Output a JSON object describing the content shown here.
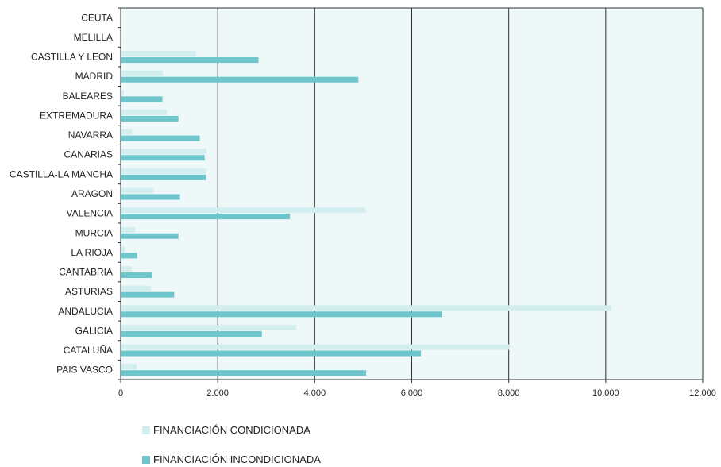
{
  "chart_data": {
    "type": "bar",
    "orientation": "horizontal",
    "categories": [
      "CEUTA",
      "MELILLA",
      "CASTILLA Y LEON",
      "MADRID",
      "BALEARES",
      "EXTREMADURA",
      "NAVARRA",
      "CANARIAS",
      "CASTILLA-LA MANCHA",
      "ARAGON",
      "VALENCIA",
      "MURCIA",
      "LA RIOJA",
      "CANTABRIA",
      "ASTURIAS",
      "ANDALUCIA",
      "GALICIA",
      "CATALUÑA",
      "PAIS VASCO"
    ],
    "series": [
      {
        "name": "FINANCIACIÓN CONDICIONADA",
        "color": "#d2eeee",
        "values": [
          0,
          0,
          1550,
          870,
          60,
          950,
          240,
          1770,
          1760,
          680,
          5050,
          300,
          100,
          230,
          620,
          10120,
          3620,
          8010,
          330
        ]
      },
      {
        "name": "FINANCIACIÓN INCONDICIONADA",
        "color": "#6cc6cc",
        "values": [
          0,
          10,
          2840,
          4900,
          860,
          1190,
          1630,
          1730,
          1760,
          1220,
          3490,
          1190,
          340,
          650,
          1100,
          6630,
          2910,
          6190,
          5060
        ]
      }
    ],
    "xlim": [
      0,
      12000
    ],
    "xticks": [
      0,
      2000,
      4000,
      6000,
      8000,
      10000,
      12000
    ],
    "xtick_labels": [
      "0",
      "2.000",
      "4.000",
      "6.000",
      "8.000",
      "10.000",
      "12.000"
    ],
    "grid": true,
    "plot_background": "#eef8f8",
    "legend_position": "bottom-left"
  }
}
